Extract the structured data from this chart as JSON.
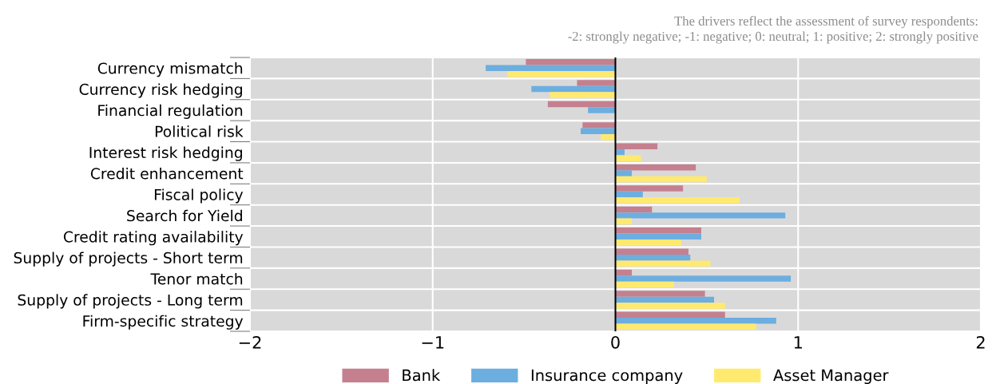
{
  "chart_data": {
    "type": "bar",
    "orientation": "horizontal",
    "categories": [
      "Currency mismatch",
      "Currency risk hedging",
      "Financial regulation",
      "Political risk",
      "Interest risk hedging",
      "Credit enhancement",
      "Fiscal policy",
      "Search for Yield",
      "Credit rating availability",
      "Supply of projects - Short term",
      "Tenor match",
      "Supply of projects - Long term",
      "Firm-specific strategy"
    ],
    "series": [
      {
        "name": "Bank",
        "color": "#c4808e",
        "values": [
          -0.49,
          -0.21,
          -0.37,
          -0.18,
          0.23,
          0.44,
          0.37,
          0.2,
          0.47,
          0.4,
          0.09,
          0.49,
          0.6
        ]
      },
      {
        "name": "Insurance company",
        "color": "#6caee0",
        "values": [
          -0.71,
          -0.46,
          -0.15,
          -0.19,
          0.05,
          0.09,
          0.15,
          0.93,
          0.47,
          0.41,
          0.96,
          0.54,
          0.88
        ]
      },
      {
        "name": "Asset Manager",
        "color": "#ffea6f",
        "values": [
          -0.59,
          -0.36,
          0,
          -0.08,
          0.14,
          0.5,
          0.68,
          0.09,
          0.36,
          0.52,
          0.32,
          0.6,
          0.77
        ]
      }
    ],
    "xlim": [
      -2,
      2
    ],
    "xticks": [
      {
        "value": -2,
        "label": "−2"
      },
      {
        "value": -1,
        "label": "−1"
      },
      0,
      1,
      2
    ],
    "ref_lines": [
      {
        "axis": "x",
        "value": 0,
        "color": "#000000"
      }
    ],
    "annotations": [
      "The drivers reflect the assessment of survey respondents:\n-2: strongly negative; -1: negative; 0: neutral; 1: positive; 2: strongly positive"
    ],
    "grid": true,
    "legend": "bottom"
  }
}
